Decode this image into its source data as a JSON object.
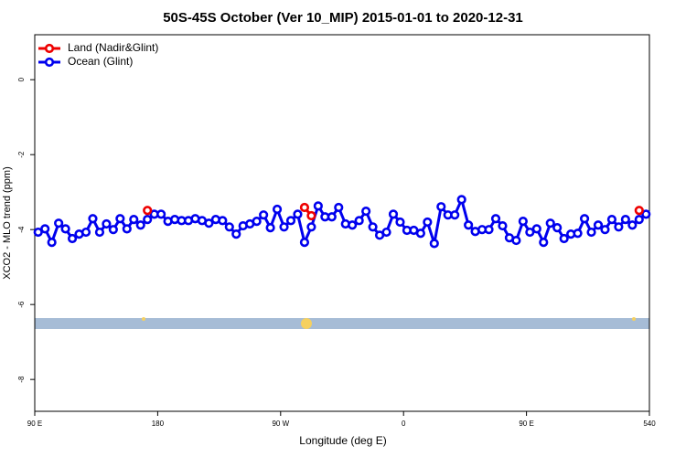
{
  "chart_data": {
    "type": "line",
    "title": "50S-45S October (Ver 10_MIP)   2015-01-01 to 2020-12-31",
    "x_label": "Longitude (deg E)",
    "y_label": "XCO2 - MLO trend (ppm)",
    "x": [
      92.5,
      97.5,
      102.5,
      107.5,
      112.5,
      117.5,
      122.5,
      127.5,
      132.5,
      137.5,
      142.5,
      147.5,
      152.5,
      157.5,
      162.5,
      167.5,
      172.5,
      177.5,
      182.5,
      187.5,
      192.5,
      197.5,
      202.5,
      207.5,
      212.5,
      217.5,
      222.5,
      227.5,
      232.5,
      237.5,
      242.5,
      247.5,
      252.5,
      257.5,
      262.5,
      267.5,
      272.5,
      277.5,
      282.5,
      287.5,
      292.5,
      297.5,
      302.5,
      307.5,
      312.5,
      317.5,
      322.5,
      327.5,
      332.5,
      337.5,
      342.5,
      347.5,
      352.5,
      357.5,
      362.5,
      367.5,
      372.5,
      377.5,
      382.5,
      387.5,
      392.5,
      397.5,
      402.5,
      407.5,
      412.5,
      417.5,
      422.5,
      427.5,
      432.5,
      437.5,
      442.5,
      447.5,
      452.5,
      457.5,
      462.5,
      467.5,
      472.5,
      477.5,
      482.5,
      487.5,
      492.5,
      497.5,
      502.5,
      507.5,
      512.5,
      517.5,
      522.5,
      527.5,
      532.5,
      537.5
    ],
    "series": [
      {
        "name": "Land (Nadir&Glint)",
        "color": "#ee0000",
        "values": [
          null,
          null,
          null,
          null,
          null,
          null,
          null,
          null,
          null,
          null,
          null,
          null,
          null,
          null,
          null,
          null,
          -3.49,
          null,
          null,
          null,
          null,
          null,
          null,
          null,
          null,
          null,
          null,
          null,
          null,
          null,
          null,
          null,
          null,
          null,
          null,
          null,
          null,
          null,
          null,
          -3.41,
          -3.63,
          null,
          null,
          null,
          null,
          null,
          null,
          null,
          null,
          null,
          null,
          null,
          null,
          null,
          null,
          null,
          null,
          null,
          null,
          null,
          null,
          null,
          null,
          null,
          null,
          null,
          null,
          null,
          null,
          null,
          null,
          null,
          null,
          null,
          null,
          null,
          null,
          null,
          null,
          null,
          null,
          null,
          null,
          null,
          null,
          null,
          null,
          null,
          -3.49,
          null
        ]
      },
      {
        "name": "Ocean (Glint)",
        "color": "#0000ee",
        "values": [
          -4.07,
          -3.98,
          -4.34,
          -3.83,
          -3.98,
          -4.24,
          -4.12,
          -4.07,
          -3.71,
          -4.07,
          -3.85,
          -4.0,
          -3.71,
          -3.98,
          -3.73,
          -3.88,
          -3.73,
          -3.59,
          -3.59,
          -3.78,
          -3.73,
          -3.76,
          -3.76,
          -3.71,
          -3.76,
          -3.83,
          -3.73,
          -3.76,
          -3.93,
          -4.12,
          -3.9,
          -3.85,
          -3.78,
          -3.61,
          -3.95,
          -3.46,
          -3.93,
          -3.76,
          -3.59,
          -4.34,
          -3.93,
          -3.37,
          -3.66,
          -3.66,
          -3.41,
          -3.85,
          -3.88,
          -3.76,
          -3.51,
          -3.93,
          -4.15,
          -4.07,
          -3.59,
          -3.8,
          -4.02,
          -4.02,
          -4.1,
          -3.8,
          -4.37,
          -3.39,
          -3.61,
          -3.61,
          -3.2,
          -3.88,
          -4.05,
          -4.0,
          -4.0,
          -3.71,
          -3.9,
          -4.22,
          -4.29,
          -3.78,
          -4.07,
          -3.98,
          -4.34,
          -3.83,
          -3.95,
          -4.24,
          -4.12,
          -4.1,
          -3.71,
          -4.07,
          -3.88,
          -4.0,
          -3.73,
          -3.93,
          -3.73,
          -3.88,
          -3.73,
          -3.59
        ]
      }
    ],
    "xlim": [
      90,
      540
    ],
    "xticks": [
      {
        "value": 90,
        "label": "90 E"
      },
      180,
      {
        "value": 270,
        "label": "90 W"
      },
      {
        "value": 360,
        "label": "0"
      },
      {
        "value": 450,
        "label": "90 E"
      },
      540
    ],
    "ylim": [
      -8.85,
      1.2
    ],
    "yticks": [
      0,
      -2,
      -4,
      -6,
      -8
    ],
    "legend": "top-left"
  }
}
